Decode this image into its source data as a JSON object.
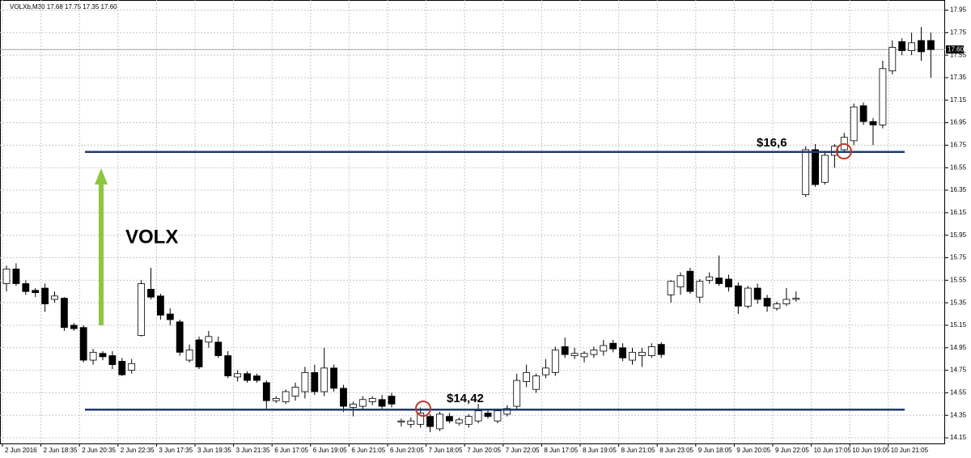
{
  "chart_data": {
    "type": "candlestick",
    "title": "VOLXb,M30  17.68 17.75 17.35 17.60",
    "annotations": [
      "VOLX",
      "$16,6",
      "$14,42"
    ],
    "hlines": [
      16.69,
      14.4
    ],
    "current_price": {
      "value": 17.6,
      "label": "17.60"
    },
    "ylim": [
      14.1,
      18.04
    ],
    "yticks": [
      14.15,
      14.35,
      14.55,
      14.75,
      14.95,
      15.15,
      15.35,
      15.55,
      15.75,
      15.95,
      16.15,
      16.35,
      16.55,
      16.75,
      16.95,
      17.15,
      17.35,
      17.55,
      17.75,
      17.95
    ],
    "grid": true,
    "bull_color": "#ffffff",
    "bear_color": "#000000",
    "line_color": "#1f3a6e",
    "categories": [
      "2 Jun 2016",
      null,
      null,
      null,
      "2 Jun 18:35",
      null,
      null,
      null,
      "2 Jun 20:35",
      null,
      null,
      null,
      "2 Jun 22:35",
      null,
      null,
      null,
      "3 Jun 17:35",
      null,
      null,
      null,
      "3 Jun 19:35",
      null,
      null,
      null,
      "3 Jun 21:35",
      null,
      null,
      null,
      "6 Jun 17:05",
      null,
      null,
      null,
      "6 Jun 19:05",
      null,
      null,
      null,
      "6 Jun 21:05",
      null,
      null,
      null,
      "6 Jun 23:05",
      null,
      null,
      null,
      "7 Jun 18:05",
      null,
      null,
      null,
      "7 Jun 20:05",
      null,
      null,
      null,
      "7 Jun 22:05",
      null,
      null,
      null,
      "8 Jun 17:05",
      null,
      null,
      null,
      "8 Jun 19:05",
      null,
      null,
      null,
      "8 Jun 21:05",
      null,
      null,
      null,
      "8 Jun 23:05",
      null,
      null,
      null,
      "9 Jun 18:05",
      null,
      null,
      null,
      "9 Jun 20:05",
      null,
      null,
      null,
      "9 Jun 22:05",
      null,
      null,
      null,
      "10 Jun 17:05",
      null,
      null,
      null,
      "10 Jun 19:05",
      null,
      null,
      null,
      "10 Jun 21:05",
      null,
      null,
      null,
      null
    ],
    "open": [
      15.52,
      15.65,
      15.52,
      15.46,
      15.48,
      15.38,
      15.39,
      15.15,
      15.13,
      14.84,
      14.9,
      14.88,
      14.83,
      14.75,
      15.06,
      15.47,
      15.41,
      15.25,
      15.18,
      14.84,
      15.02,
      15.0,
      15.0,
      14.88,
      14.69,
      14.72,
      14.7,
      14.64,
      14.48,
      14.47,
      14.52,
      14.56,
      14.73,
      14.56,
      14.77,
      14.59,
      14.42,
      14.43,
      14.47,
      14.49,
      14.52,
      14.29,
      14.27,
      14.27,
      14.34,
      14.23,
      14.34,
      14.28,
      14.27,
      14.3,
      14.37,
      14.3,
      14.36,
      14.43,
      14.65,
      14.58,
      14.71,
      14.73,
      14.96,
      14.88,
      14.87,
      14.89,
      14.92,
      14.99,
      14.95,
      14.84,
      14.88,
      14.88,
      14.98,
      15.42,
      15.49,
      15.63,
      15.4,
      15.55,
      15.57,
      15.56,
      15.5,
      15.32,
      15.48,
      15.39,
      15.3,
      15.34,
      15.38,
      16.31,
      16.71,
      16.42,
      16.66,
      16.71,
      16.79,
      17.1,
      16.96,
      16.93,
      17.41,
      17.67,
      17.59,
      17.68,
      17.68
    ],
    "high": [
      15.68,
      15.7,
      15.55,
      15.48,
      15.52,
      15.45,
      15.4,
      15.17,
      15.15,
      14.94,
      14.92,
      14.92,
      14.86,
      14.85,
      15.55,
      15.66,
      15.43,
      15.3,
      15.2,
      14.98,
      15.05,
      15.1,
      15.05,
      14.92,
      14.75,
      14.74,
      14.72,
      14.66,
      14.52,
      14.58,
      14.64,
      14.78,
      14.8,
      14.95,
      14.8,
      14.62,
      14.47,
      14.52,
      14.52,
      14.53,
      14.55,
      14.32,
      14.33,
      14.42,
      14.36,
      14.38,
      14.37,
      14.33,
      14.36,
      14.45,
      14.4,
      14.41,
      14.44,
      14.72,
      14.8,
      14.72,
      14.85,
      14.96,
      15.04,
      14.95,
      14.92,
      14.96,
      15.02,
      15.02,
      14.99,
      14.95,
      14.95,
      14.99,
      15.0,
      15.55,
      15.62,
      15.66,
      15.56,
      15.62,
      15.77,
      15.6,
      15.53,
      15.5,
      15.52,
      15.42,
      15.36,
      15.48,
      15.45,
      16.74,
      16.76,
      16.7,
      16.76,
      16.86,
      17.12,
      17.13,
      16.99,
      17.5,
      17.68,
      17.7,
      17.75,
      17.8,
      17.75
    ],
    "low": [
      15.45,
      15.5,
      15.42,
      15.4,
      15.27,
      15.35,
      15.1,
      15.1,
      14.82,
      14.8,
      14.84,
      14.76,
      14.7,
      14.72,
      15.05,
      15.38,
      15.2,
      15.15,
      14.88,
      14.82,
      14.76,
      14.95,
      14.86,
      14.68,
      14.65,
      14.64,
      14.64,
      14.4,
      14.46,
      14.45,
      14.48,
      14.5,
      14.53,
      14.52,
      14.56,
      14.38,
      14.34,
      14.4,
      14.44,
      14.4,
      14.42,
      14.25,
      14.24,
      14.24,
      14.2,
      14.21,
      14.28,
      14.26,
      14.24,
      14.28,
      14.32,
      14.28,
      14.34,
      14.41,
      14.6,
      14.55,
      14.68,
      14.7,
      14.86,
      14.85,
      14.82,
      14.86,
      14.88,
      14.91,
      14.83,
      14.8,
      14.78,
      14.86,
      14.86,
      15.35,
      15.42,
      15.43,
      15.35,
      15.52,
      15.5,
      15.45,
      15.25,
      15.3,
      15.34,
      15.27,
      15.28,
      15.32,
      15.36,
      16.29,
      16.38,
      16.4,
      16.55,
      16.69,
      16.75,
      16.93,
      16.75,
      16.9,
      17.38,
      17.55,
      17.55,
      17.5,
      17.35
    ],
    "close": [
      15.65,
      15.52,
      15.45,
      15.44,
      15.34,
      15.41,
      15.13,
      15.12,
      14.84,
      14.91,
      14.87,
      14.8,
      14.71,
      14.81,
      15.52,
      15.4,
      15.24,
      15.2,
      14.91,
      14.93,
      14.78,
      15.05,
      14.88,
      14.7,
      14.72,
      14.66,
      14.66,
      14.48,
      14.5,
      14.56,
      14.6,
      14.73,
      14.56,
      14.77,
      14.59,
      14.43,
      14.45,
      14.49,
      14.5,
      14.43,
      14.45,
      14.3,
      14.3,
      14.37,
      14.25,
      14.36,
      14.3,
      14.31,
      14.34,
      14.39,
      14.34,
      14.39,
      14.41,
      14.66,
      14.73,
      14.7,
      14.77,
      14.93,
      14.89,
      14.9,
      14.9,
      14.93,
      14.97,
      14.94,
      14.86,
      14.91,
      14.91,
      14.96,
      14.89,
      15.54,
      15.59,
      15.45,
      15.54,
      15.58,
      15.52,
      15.49,
      15.32,
      15.48,
      15.38,
      15.32,
      15.34,
      15.38,
      15.39,
      16.71,
      16.4,
      16.66,
      16.74,
      16.82,
      17.09,
      16.96,
      16.93,
      17.43,
      17.62,
      17.59,
      17.66,
      17.58,
      17.6
    ]
  }
}
